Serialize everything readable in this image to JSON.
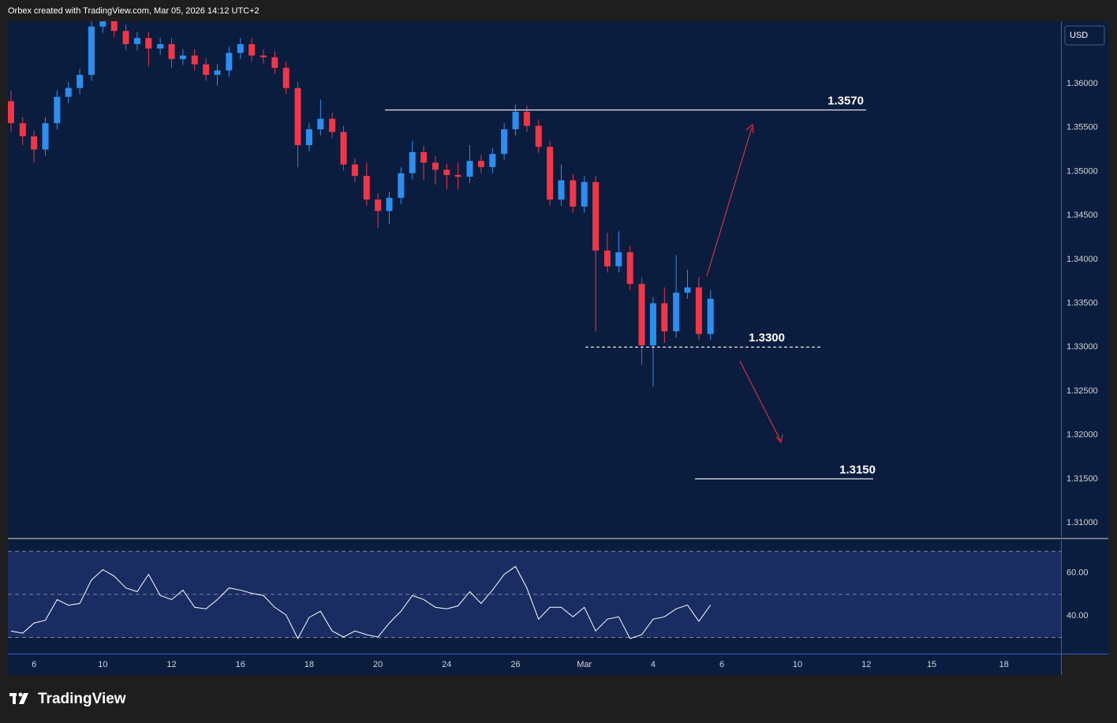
{
  "header": {
    "attribution": "Orbex created with TradingView.com, Mar 05, 2026 14:12 UTC+2"
  },
  "footer": {
    "brand": "TradingView"
  },
  "chart_data": [
    {
      "type": "candlestick",
      "currency": "USD",
      "up_color": "#2b8ef0",
      "down_color": "#f23645",
      "x": [
        -0.67,
        -0.33,
        0,
        0.33,
        0.67,
        1,
        1.33,
        1.67,
        2,
        2.33,
        2.67,
        3,
        3.33,
        3.67,
        4,
        4.33,
        4.67,
        5,
        5.33,
        5.67,
        6,
        6.33,
        6.67,
        7,
        7.33,
        7.67,
        8,
        8.33,
        8.67,
        9,
        9.33,
        9.67,
        10,
        10.33,
        10.67,
        11,
        11.33,
        11.67,
        12,
        12.33,
        12.67,
        13,
        13.33,
        13.67,
        14,
        14.33,
        14.67,
        15,
        15.33,
        15.67,
        16,
        16.33,
        16.67,
        17,
        17.33,
        17.67,
        18,
        18.33,
        18.67,
        19,
        19.33,
        19.67
      ],
      "open": [
        1.358,
        1.3555,
        1.354,
        1.3525,
        1.3555,
        1.3585,
        1.3595,
        1.361,
        1.3665,
        1.3672,
        1.366,
        1.3645,
        1.3652,
        1.364,
        1.3645,
        1.3628,
        1.3632,
        1.3622,
        1.361,
        1.3615,
        1.3635,
        1.3645,
        1.3632,
        1.363,
        1.3618,
        1.3595,
        1.353,
        1.3548,
        1.356,
        1.3545,
        1.3508,
        1.3495,
        1.3468,
        1.3455,
        1.347,
        1.3498,
        1.3522,
        1.351,
        1.3502,
        1.3496,
        1.3494,
        1.3512,
        1.3505,
        1.352,
        1.3548,
        1.3568,
        1.3552,
        1.3528,
        1.3468,
        1.349,
        1.346,
        1.3488,
        1.341,
        1.3392,
        1.3408,
        1.3372,
        1.3302,
        1.335,
        1.3318,
        1.3362,
        1.3368,
        1.3315
      ],
      "high": [
        1.3592,
        1.3562,
        1.3547,
        1.3562,
        1.3592,
        1.3602,
        1.3617,
        1.3672,
        1.3679,
        1.3679,
        1.3667,
        1.3659,
        1.3659,
        1.3652,
        1.3652,
        1.3639,
        1.3639,
        1.3629,
        1.3622,
        1.3642,
        1.3652,
        1.3652,
        1.3639,
        1.3637,
        1.3625,
        1.3602,
        1.3555,
        1.3582,
        1.3567,
        1.3552,
        1.3515,
        1.351,
        1.3475,
        1.3477,
        1.3505,
        1.3535,
        1.3529,
        1.3517,
        1.3509,
        1.351,
        1.353,
        1.3519,
        1.3527,
        1.3555,
        1.3576,
        1.3575,
        1.3559,
        1.3535,
        1.3508,
        1.3497,
        1.3495,
        1.3495,
        1.343,
        1.3432,
        1.3415,
        1.3379,
        1.3357,
        1.3368,
        1.3405,
        1.3388,
        1.338,
        1.3365
      ],
      "low": [
        1.3545,
        1.353,
        1.351,
        1.3518,
        1.3548,
        1.3578,
        1.3588,
        1.3603,
        1.3658,
        1.3653,
        1.3638,
        1.3638,
        1.362,
        1.3633,
        1.3618,
        1.3621,
        1.3615,
        1.3603,
        1.3598,
        1.3608,
        1.3628,
        1.3625,
        1.3623,
        1.3611,
        1.3588,
        1.3505,
        1.3523,
        1.3541,
        1.3538,
        1.3501,
        1.3488,
        1.3461,
        1.3436,
        1.344,
        1.3463,
        1.3491,
        1.349,
        1.3485,
        1.348,
        1.348,
        1.3487,
        1.3498,
        1.3498,
        1.3513,
        1.3541,
        1.3545,
        1.3521,
        1.3461,
        1.3461,
        1.3453,
        1.3453,
        1.3318,
        1.3385,
        1.3385,
        1.3365,
        1.328,
        1.3255,
        1.3305,
        1.3311,
        1.3355,
        1.3308,
        1.3308
      ],
      "close": [
        1.3555,
        1.354,
        1.3525,
        1.3555,
        1.3585,
        1.3595,
        1.361,
        1.3665,
        1.3672,
        1.366,
        1.3645,
        1.3652,
        1.364,
        1.3645,
        1.3628,
        1.3632,
        1.3622,
        1.361,
        1.3615,
        1.3635,
        1.3645,
        1.3632,
        1.363,
        1.3618,
        1.3595,
        1.353,
        1.3548,
        1.356,
        1.3545,
        1.3508,
        1.3495,
        1.3468,
        1.3455,
        1.347,
        1.3498,
        1.3522,
        1.351,
        1.3502,
        1.3496,
        1.3494,
        1.3512,
        1.3505,
        1.352,
        1.3548,
        1.3568,
        1.3552,
        1.3528,
        1.3468,
        1.349,
        1.346,
        1.3488,
        1.341,
        1.3392,
        1.3408,
        1.3372,
        1.3302,
        1.335,
        1.3318,
        1.3362,
        1.3368,
        1.3315,
        1.3355
      ],
      "xlim": [
        -0.76,
        29.86
      ],
      "xticks": [
        {
          "value": 0,
          "label": "6"
        },
        {
          "value": 2,
          "label": "10"
        },
        {
          "value": 4,
          "label": "12"
        },
        {
          "value": 6,
          "label": "16"
        },
        {
          "value": 8,
          "label": "18"
        },
        {
          "value": 10,
          "label": "20"
        },
        {
          "value": 12,
          "label": "24"
        },
        {
          "value": 14,
          "label": "26"
        },
        {
          "value": 16,
          "label": "Mar"
        },
        {
          "value": 18,
          "label": "4"
        },
        {
          "value": 20,
          "label": "6"
        },
        {
          "value": 22.2,
          "label": "10"
        },
        {
          "value": 24.2,
          "label": "12"
        },
        {
          "value": 26.1,
          "label": "15"
        },
        {
          "value": 28.2,
          "label": "18"
        }
      ],
      "ylim": [
        1.3083,
        1.3671
      ],
      "yticks": [
        {
          "value": 1.36,
          "label": "1.36000"
        },
        {
          "value": 1.355,
          "label": "1.35500"
        },
        {
          "value": 1.35,
          "label": "1.35000"
        },
        {
          "value": 1.345,
          "label": "1.34500"
        },
        {
          "value": 1.34,
          "label": "1.34000"
        },
        {
          "value": 1.335,
          "label": "1.33500"
        },
        {
          "value": 1.33,
          "label": "1.33000"
        },
        {
          "value": 1.325,
          "label": "1.32500"
        },
        {
          "value": 1.32,
          "label": "1.32000"
        },
        {
          "value": 1.315,
          "label": "1.31500"
        },
        {
          "value": 1.31,
          "label": "1.31000"
        }
      ],
      "levels": [
        {
          "value": 1.357,
          "label": "1.3570",
          "style": "solid"
        },
        {
          "value": 1.33,
          "label": "1.3300",
          "style": "dashed"
        },
        {
          "value": 1.315,
          "label": "1.3150",
          "style": "solid"
        }
      ]
    },
    {
      "type": "line",
      "color": "#ffffff",
      "values": [
        33,
        32,
        36.7,
        38,
        47.6,
        45,
        45.8,
        56.7,
        61.5,
        58.5,
        53,
        51.3,
        59.3,
        49.5,
        47.6,
        52,
        44,
        43.3,
        47.6,
        53,
        52,
        50.5,
        49.5,
        44,
        40.4,
        29.5,
        39.3,
        42.2,
        33,
        30.2,
        33,
        31.3,
        30.2,
        36.7,
        42.2,
        49.5,
        47.6,
        44,
        43.3,
        44.7,
        51.3,
        45.8,
        52,
        59.3,
        63,
        53,
        38.5,
        44,
        44,
        39.6,
        44,
        33,
        38.5,
        39.6,
        29.5,
        31.3,
        38.5,
        39.6,
        43.3,
        45.1,
        37.5,
        45.1
      ],
      "ylim": [
        22.5,
        75.6
      ],
      "yticks": [
        {
          "value": 60,
          "label": "60.00"
        },
        {
          "value": 40,
          "label": "40.00"
        }
      ],
      "bands": [
        70,
        50,
        30
      ]
    }
  ]
}
